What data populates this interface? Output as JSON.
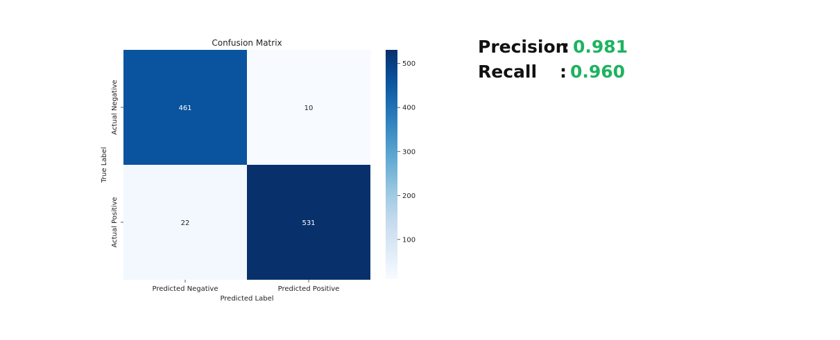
{
  "chart_data": {
    "type": "heatmap",
    "title": "Confusion Matrix",
    "xlabel": "Predicted Label",
    "ylabel": "True Label",
    "x_categories": [
      "Predicted Negative",
      "Predicted Positive"
    ],
    "y_categories": [
      "Actual Negative",
      "Actual Positive"
    ],
    "values": [
      [
        461,
        10
      ],
      [
        22,
        531
      ]
    ],
    "colormap": "Blues",
    "colorbar": {
      "min": 10,
      "max": 531,
      "ticks": [
        100,
        200,
        300,
        400,
        500
      ]
    }
  },
  "metrics": [
    {
      "label": "Precision",
      "separator": ":",
      "value": "0.981"
    },
    {
      "label": "Recall",
      "separator": ":",
      "value": "0.960"
    }
  ],
  "colors": {
    "metric_value": "#1db35f",
    "metric_label": "#111111"
  }
}
